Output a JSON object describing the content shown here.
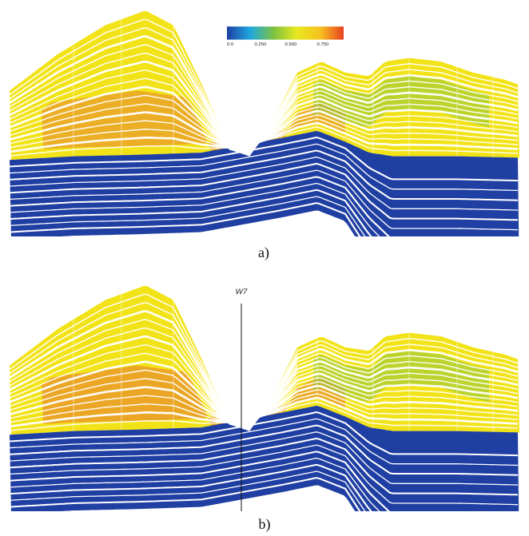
{
  "colorbar": {
    "ticks": [
      "0.0",
      "0.250",
      "0.500",
      "0.750"
    ],
    "stops": [
      "#1f3fa3",
      "#1fa8df",
      "#7cc242",
      "#e8e81f",
      "#f5c21f",
      "#e8401f"
    ]
  },
  "panels": [
    {
      "id": "a",
      "caption": "a)",
      "well": null,
      "shallow_color": "#f2e318",
      "hot_color": "#e89c2a",
      "green_color": "#8ec63f",
      "deep_color": "#1f3fa3"
    },
    {
      "id": "b",
      "caption": "b)",
      "well": "W7",
      "shallow_color": "#f2e318",
      "hot_color": "#e8912a",
      "green_color": "#8ec63f",
      "deep_color": "#1f3fa3"
    }
  ]
}
